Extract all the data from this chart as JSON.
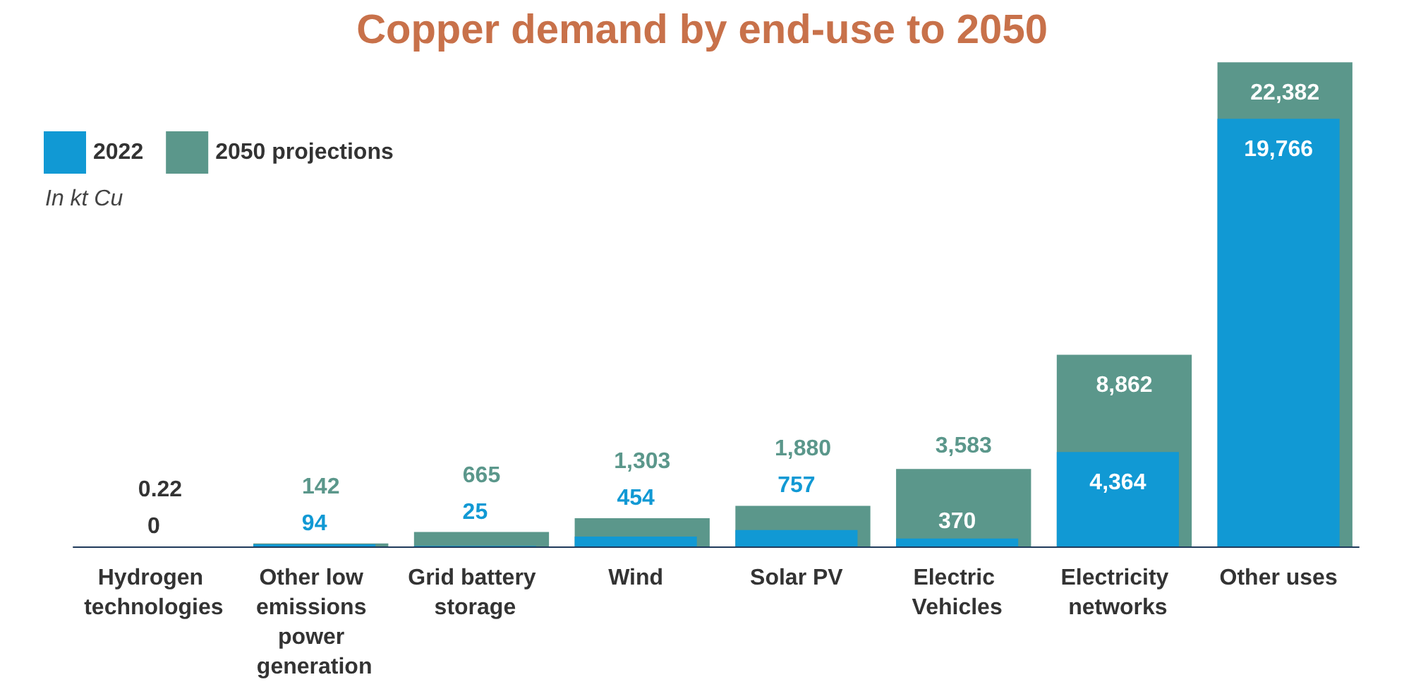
{
  "chart_data": {
    "type": "bar",
    "title": "Copper demand by end-use to 2050",
    "categories": [
      "Hydrogen technologies",
      "Other low emissions power generation",
      "Grid battery storage",
      "Wind",
      "Solar PV",
      "Electric Vehicles",
      "Electricity networks",
      "Other uses"
    ],
    "series": [
      {
        "name": "2050 projections",
        "color": "#5b978b",
        "values": [
          0.22,
          142,
          665,
          1303,
          1880,
          3583,
          8862,
          22382
        ],
        "value_labels": [
          "0.22",
          "142",
          "665",
          "1,303",
          "1,880",
          "3,583",
          "8,862",
          "22,382"
        ]
      },
      {
        "name": "2022",
        "color": "#1199d4",
        "values": [
          0,
          94,
          25,
          454,
          757,
          370,
          4364,
          19766
        ],
        "value_labels": [
          "0",
          "94",
          "25",
          "454",
          "757",
          "370",
          "4,364",
          "19,766"
        ]
      }
    ],
    "annotations": [
      "In kt Cu"
    ],
    "legend": "top left",
    "grid": false
  }
}
